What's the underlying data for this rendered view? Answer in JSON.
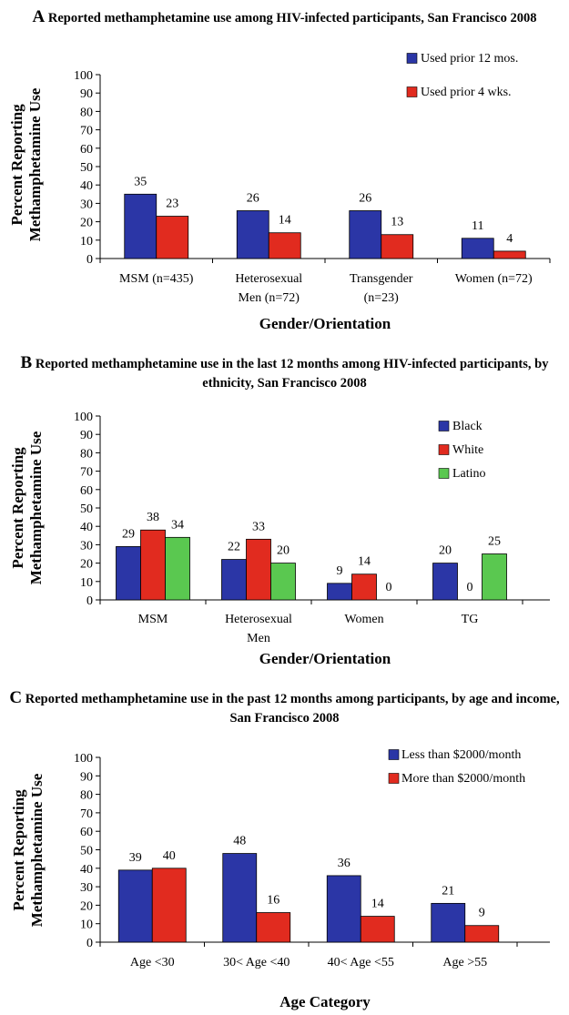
{
  "charts": [
    {
      "id": "a",
      "letter": "A",
      "title": " Reported methamphetamine use among HIV-infected participants, San Francisco 2008",
      "chart_data": {
        "type": "bar",
        "categories": [
          [
            "MSM (n=435)"
          ],
          [
            "Heterosexual",
            "Men (n=72)"
          ],
          [
            "Transgender",
            "(n=23)"
          ],
          [
            "Women (n=72)"
          ]
        ],
        "series": [
          {
            "name": "Used prior 12 mos.",
            "color": "#2b36a6",
            "values": [
              35,
              26,
              26,
              11
            ]
          },
          {
            "name": "Used prior 4 wks.",
            "color": "#e12b1f",
            "values": [
              23,
              14,
              13,
              4
            ]
          }
        ],
        "ylabel": [
          "Percent Reporting",
          "Methamphetamine Use"
        ],
        "xlabel": "Gender/Orientation",
        "yticks": [
          0,
          10,
          20,
          30,
          40,
          50,
          60,
          70,
          80,
          90,
          100
        ],
        "ylim": [
          0,
          100
        ],
        "legend_position": "top-right",
        "grid": false
      }
    },
    {
      "id": "b",
      "letter": "B",
      "title": " Reported methamphetamine use in the last 12 months among HIV-infected participants, by ethnicity, San Francisco 2008",
      "chart_data": {
        "type": "bar",
        "categories": [
          [
            "MSM"
          ],
          [
            "Heterosexual",
            "Men"
          ],
          [
            "Women"
          ],
          [
            "TG"
          ]
        ],
        "series": [
          {
            "name": "Black",
            "color": "#2b36a6",
            "values": [
              29,
              22,
              9,
              20
            ]
          },
          {
            "name": "White",
            "color": "#e12b1f",
            "values": [
              38,
              33,
              14,
              0
            ]
          },
          {
            "name": "Latino",
            "color": "#5ac850",
            "values": [
              34,
              20,
              0,
              25
            ]
          }
        ],
        "ylabel": [
          "Percent Reporting",
          "Methamphetamine Use"
        ],
        "xlabel": "Gender/Orientation",
        "yticks": [
          0,
          10,
          20,
          30,
          40,
          50,
          60,
          70,
          80,
          90,
          100
        ],
        "ylim": [
          0,
          100
        ],
        "legend_position": "right",
        "grid": false
      }
    },
    {
      "id": "c",
      "letter": "C",
      "title": " Reported methamphetamine use in the past 12 months among participants, by age and income, San Francisco 2008",
      "chart_data": {
        "type": "bar",
        "categories": [
          [
            "Age <30"
          ],
          [
            "30< Age <40"
          ],
          [
            "40< Age <55"
          ],
          [
            "Age >55"
          ]
        ],
        "series": [
          {
            "name": "Less than $2000/month",
            "color": "#2b36a6",
            "values": [
              39,
              48,
              36,
              21
            ]
          },
          {
            "name": "More than $2000/month",
            "color": "#e12b1f",
            "values": [
              40,
              16,
              14,
              9
            ]
          }
        ],
        "ylabel": [
          "Percent Reporting",
          "Methamphetamine Use"
        ],
        "xlabel": "Age Category",
        "yticks": [
          0,
          10,
          20,
          30,
          40,
          50,
          60,
          70,
          80,
          90,
          100
        ],
        "ylim": [
          0,
          100
        ],
        "legend_position": "top-right",
        "grid": false
      }
    }
  ]
}
